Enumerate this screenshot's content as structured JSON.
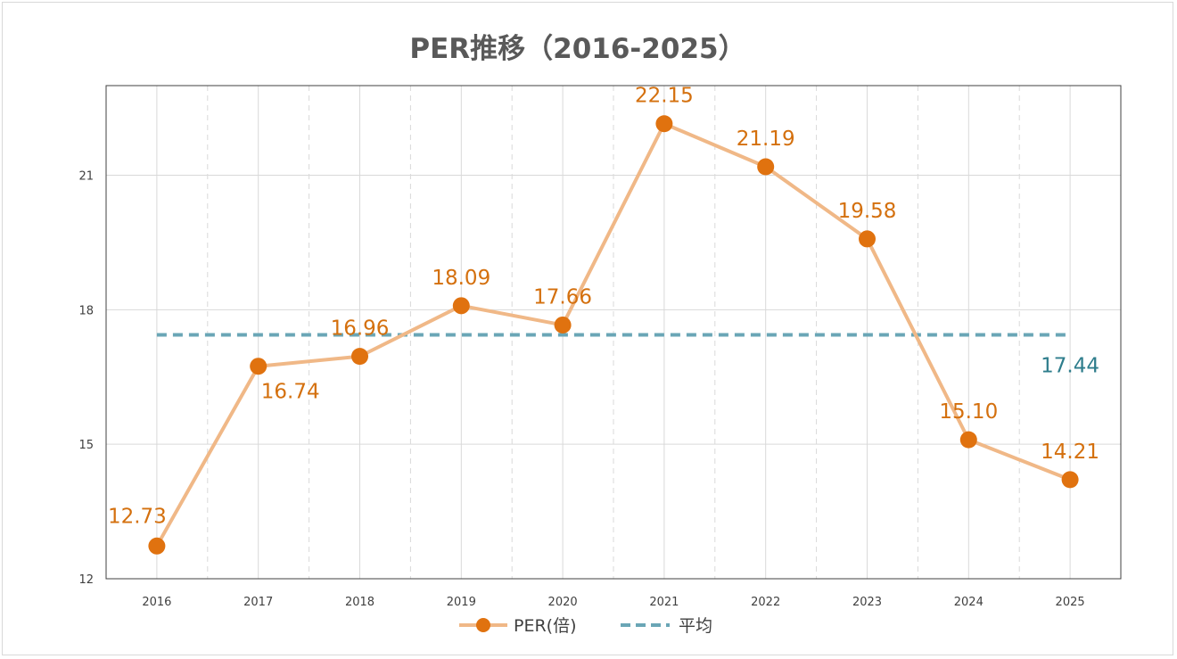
{
  "chart_data": {
    "type": "line",
    "title": "PER推移（2016-2025）",
    "xlabel": "",
    "ylabel": "",
    "x": [
      "2016",
      "2017",
      "2018",
      "2019",
      "2020",
      "2021",
      "2022",
      "2023",
      "2024",
      "2025"
    ],
    "series": [
      {
        "name": "PER(倍)",
        "values": [
          12.73,
          16.74,
          16.96,
          18.09,
          17.66,
          22.15,
          21.19,
          19.58,
          15.1,
          14.21
        ],
        "value_labels": [
          "12.73",
          "16.74",
          "16.96",
          "18.09",
          "17.66",
          "22.15",
          "21.19",
          "19.58",
          "15.10",
          "14.21"
        ],
        "line_color": "#f0b887",
        "marker_color": "#e0720f",
        "label_color": "#d4700e"
      },
      {
        "name": "平均",
        "value": 17.44,
        "value_label": "17.44",
        "style": "dashed",
        "line_color": "#6aa6b6",
        "label_color": "#2e7d8c"
      }
    ],
    "ylim": [
      12,
      23
    ],
    "yticks": [
      12,
      15,
      18,
      21
    ],
    "grid": true,
    "legend": "bottom-center"
  }
}
